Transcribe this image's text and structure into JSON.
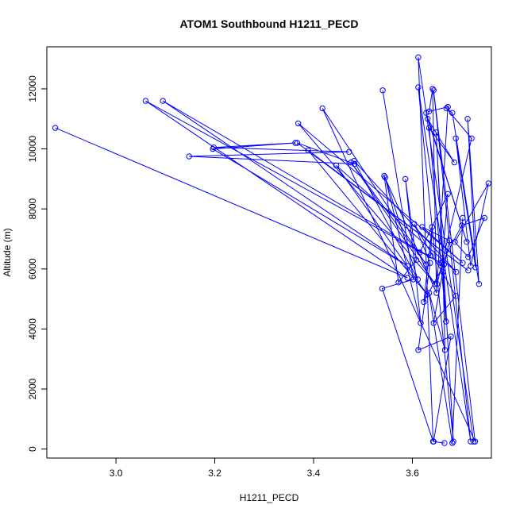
{
  "chart_data": {
    "type": "scatter",
    "title": "ATOM1 Southbound H1211_PECD",
    "xlabel": "H1211_PECD",
    "ylabel": "Altitude (m)",
    "xlim": [
      2.86,
      3.76
    ],
    "ylim": [
      -300,
      13400
    ],
    "x_ticks": [
      {
        "value": 3.0,
        "label": "3.0"
      },
      {
        "value": 3.2,
        "label": "3.2"
      },
      {
        "value": 3.4,
        "label": "3.4"
      },
      {
        "value": 3.6,
        "label": "3.6"
      }
    ],
    "y_ticks": [
      {
        "value": 0,
        "label": "0"
      },
      {
        "value": 2000,
        "label": "2000"
      },
      {
        "value": 4000,
        "label": "4000"
      },
      {
        "value": 6000,
        "label": "6000"
      },
      {
        "value": 8000,
        "label": "8000"
      },
      {
        "value": 10000,
        "label": "10000"
      },
      {
        "value": 12000,
        "label": "12000"
      }
    ],
    "grid": false,
    "legend": "none",
    "series": [
      {
        "color": "#0000ff",
        "marker": "open-circle",
        "line": true,
        "x": [
          2.877,
          3.59,
          3.06,
          3.657,
          3.095,
          3.59,
          3.196,
          3.363,
          3.198,
          3.472,
          3.148,
          3.483,
          3.367,
          3.713,
          3.389,
          3.63,
          3.446,
          3.689,
          3.482,
          3.611,
          3.545,
          3.617,
          3.586,
          3.608,
          3.572,
          3.543,
          3.649,
          3.641,
          3.634,
          3.672,
          3.65,
          3.72,
          3.669,
          3.681,
          3.735,
          3.712,
          3.728,
          3.688,
          3.718,
          3.754,
          3.686,
          3.713,
          3.746,
          3.7,
          3.66,
          3.672,
          3.615,
          3.637,
          3.64,
          3.623,
          3.664,
          3.643,
          3.688,
          3.604,
          3.636,
          3.612,
          3.678,
          3.643,
          3.665
        ],
        "y": [
          10700,
          5700,
          11600,
          6200,
          11600,
          6100,
          10000,
          10200,
          10050,
          9900,
          9750,
          9500,
          10200,
          5950,
          9950,
          5150,
          9450,
          5900,
          9600,
          5650,
          9050,
          4200,
          9000,
          6300,
          5550,
          9100,
          5200,
          12000,
          11250,
          11400,
          5500,
          10350,
          11350,
          11200,
          5500,
          11000,
          6050,
          10350,
          6100,
          8850,
          6900,
          6400,
          7700,
          7450,
          6200,
          8500,
          6550,
          6450,
          7400,
          4900,
          6150,
          4200,
          5100,
          7500,
          6200,
          3300,
          3750,
          250,
          200
        ]
      },
      {
        "color": "#0000ff",
        "marker": "open-circle",
        "line": true,
        "x": [
          3.54,
          3.602,
          3.539,
          3.642,
          3.612,
          3.724,
          3.628,
          3.71,
          3.631,
          3.685,
          3.634,
          3.668,
          3.648,
          3.683,
          3.612,
          3.718,
          3.643,
          3.727,
          3.418,
          3.628,
          3.476,
          3.646,
          3.369,
          3.702,
          3.62,
          3.675,
          3.662,
          3.666,
          3.634,
          3.681,
          3.702
        ],
        "y": [
          11950,
          5650,
          5350,
          250,
          13050,
          250,
          11200,
          6900,
          11000,
          9550,
          10700,
          4250,
          10550,
          250,
          12050,
          250,
          11950,
          250,
          11350,
          6150,
          9550,
          5500,
          10850,
          6200,
          7400,
          6950,
          5900,
          3300,
          5200,
          200,
          7700
        ]
      }
    ]
  }
}
